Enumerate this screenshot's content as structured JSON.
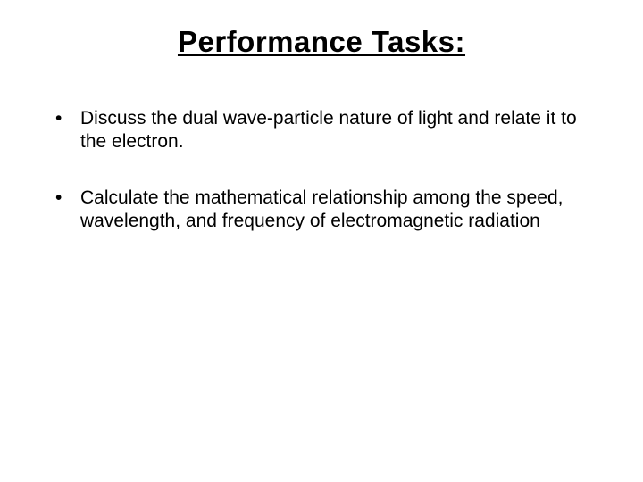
{
  "slide": {
    "title": "Performance Tasks:",
    "title_fontsize": 33,
    "title_color": "#000000",
    "body_fontsize": 21,
    "body_color": "#000000",
    "line_height": 1.25,
    "background_color": "#ffffff",
    "bullets": [
      {
        "text": "Discuss the dual wave-particle nature of light and relate it to the electron."
      },
      {
        "text": "Calculate the mathematical relationship among the speed, wavelength, and frequency of electromagnetic radiation"
      }
    ]
  }
}
